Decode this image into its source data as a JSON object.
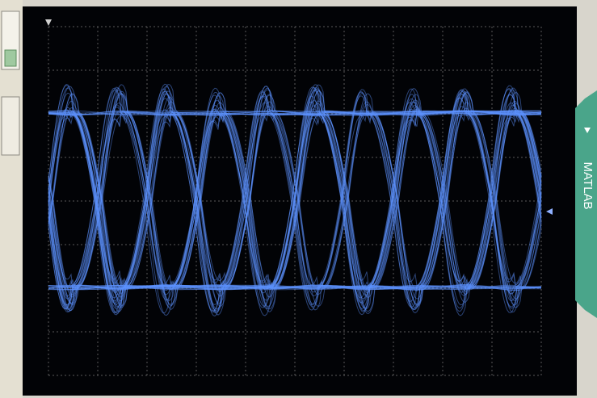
{
  "tab": {
    "label": "MATLAB"
  }
}
